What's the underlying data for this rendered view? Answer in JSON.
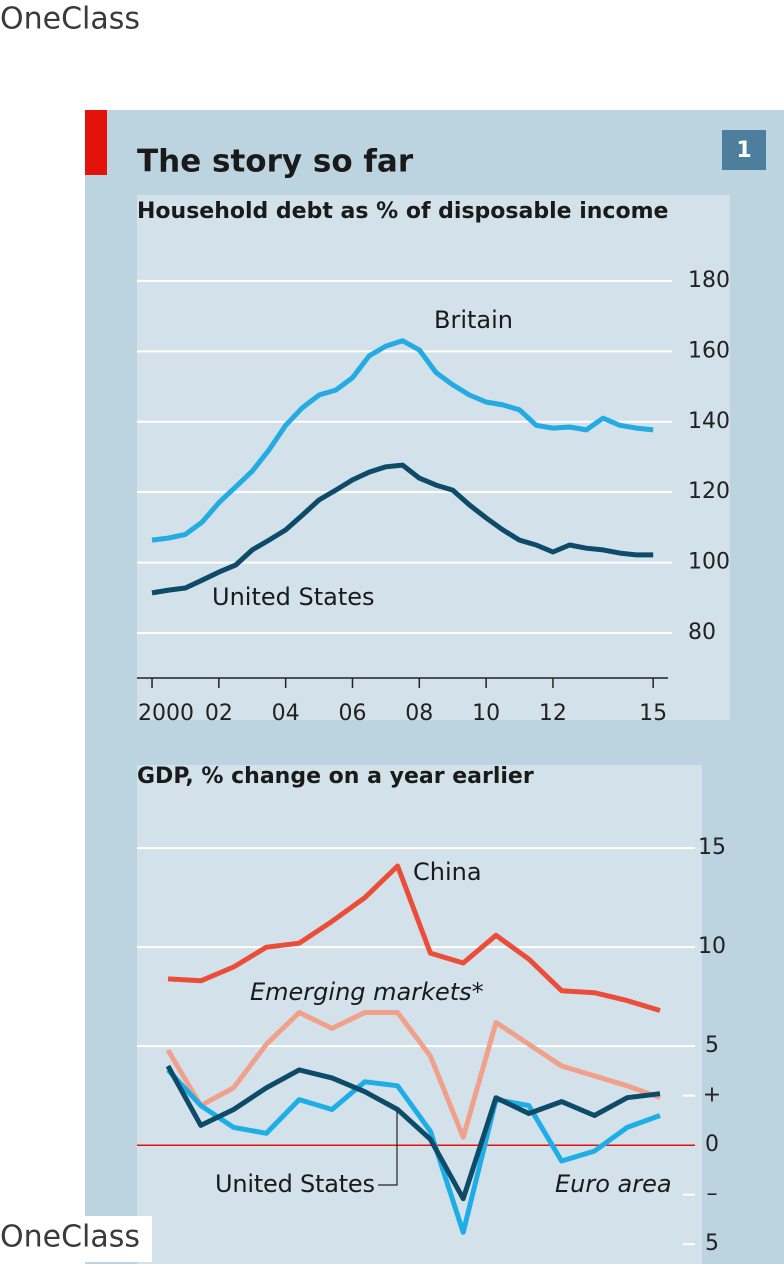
{
  "watermark": "OneClass",
  "chart_data": [
    {
      "type": "line",
      "title": "The story so far",
      "figure_number": 1,
      "subtitle": "Household debt as % of disposable income",
      "x": [
        2000,
        2000.5,
        2001,
        2001.5,
        2002,
        2002.5,
        2003,
        2003.5,
        2004,
        2004.5,
        2005,
        2005.5,
        2006,
        2006.5,
        2007,
        2007.5,
        2008,
        2008.5,
        2009,
        2009.5,
        2010,
        2010.5,
        2011,
        2011.5,
        2012,
        2012.5,
        2013,
        2013.5,
        2014,
        2014.5,
        2015
      ],
      "series": [
        {
          "name": "Britain",
          "color": "#23abe2",
          "values": [
            106.4,
            107,
            108,
            111.5,
            117,
            121.5,
            126,
            132,
            139,
            144,
            147.6,
            149,
            152.5,
            158.7,
            161.5,
            163,
            160.4,
            154,
            150.5,
            147.6,
            145.6,
            144.8,
            143.4,
            139,
            138.2,
            138.5,
            137.7,
            141,
            139,
            138.2,
            137.7
          ]
        },
        {
          "name": "United States",
          "color": "#0d4b69",
          "values": [
            91.4,
            92.2,
            92.8,
            95,
            97.3,
            99.3,
            103.6,
            106.4,
            109.3,
            113.5,
            117.8,
            120.6,
            123.5,
            125.7,
            127.2,
            127.7,
            124,
            122,
            120.6,
            116.4,
            112.7,
            109.3,
            106.4,
            105,
            103,
            105,
            104.1,
            103.6,
            102.7,
            102.2,
            102.2
          ]
        }
      ],
      "xlim": [
        1999.55,
        2017.3
      ],
      "xticks": [
        2000,
        {
          "value": 2002,
          "label": "02"
        },
        {
          "value": 2004,
          "label": "04"
        },
        {
          "value": 2006,
          "label": "06"
        },
        {
          "value": 2008,
          "label": "08"
        },
        {
          "value": 2010,
          "label": "10"
        },
        {
          "value": 2012,
          "label": "12"
        },
        {
          "value": 2015,
          "label": "15"
        }
      ],
      "ylim": [
        55.3,
        204.4
      ],
      "yticks": [
        80,
        100,
        120,
        140,
        160,
        180
      ],
      "grid": true
    },
    {
      "type": "line",
      "subtitle": "GDP, % change on a year earlier",
      "categories": [
        null,
        null,
        null,
        null,
        null,
        null,
        null,
        null,
        null,
        null,
        null,
        null,
        null,
        null,
        null,
        null
      ],
      "series": [
        {
          "name": "China",
          "color": "#ec4d39",
          "values": [
            8.4,
            8.3,
            9.0,
            10.0,
            10.2,
            11.3,
            12.5,
            14.1,
            9.7,
            9.2,
            10.6,
            9.4,
            7.8,
            7.7,
            7.3,
            6.8
          ]
        },
        {
          "name": "Emerging markets*",
          "color": "#f0a18b",
          "values": [
            4.8,
            2.0,
            2.9,
            5.1,
            6.7,
            5.9,
            6.7,
            6.7,
            4.5,
            0.4,
            6.2,
            5.1,
            4.0,
            3.5,
            3.0,
            2.4
          ]
        },
        {
          "name": "Euro area",
          "color": "#1eaee6",
          "values": [
            3.8,
            2.0,
            0.9,
            0.6,
            2.3,
            1.8,
            3.2,
            3.0,
            0.7,
            -4.4,
            2.3,
            2.0,
            -0.8,
            -0.3,
            0.9,
            1.5
          ]
        },
        {
          "name": "United States",
          "color": "#0d4b69",
          "values": [
            4.0,
            1.0,
            1.8,
            2.9,
            3.8,
            3.4,
            2.7,
            1.8,
            0.3,
            -2.7,
            2.4,
            1.6,
            2.2,
            1.5,
            2.4,
            2.6
          ]
        }
      ],
      "ylim": [
        -6,
        19.2
      ],
      "yticks": [
        15,
        10,
        5,
        {
          "value": 2.5,
          "label": "+"
        },
        0,
        {
          "value": -2.5,
          "label": "–"
        },
        {
          "value": -5,
          "label": "5"
        }
      ],
      "grid": true
    }
  ]
}
